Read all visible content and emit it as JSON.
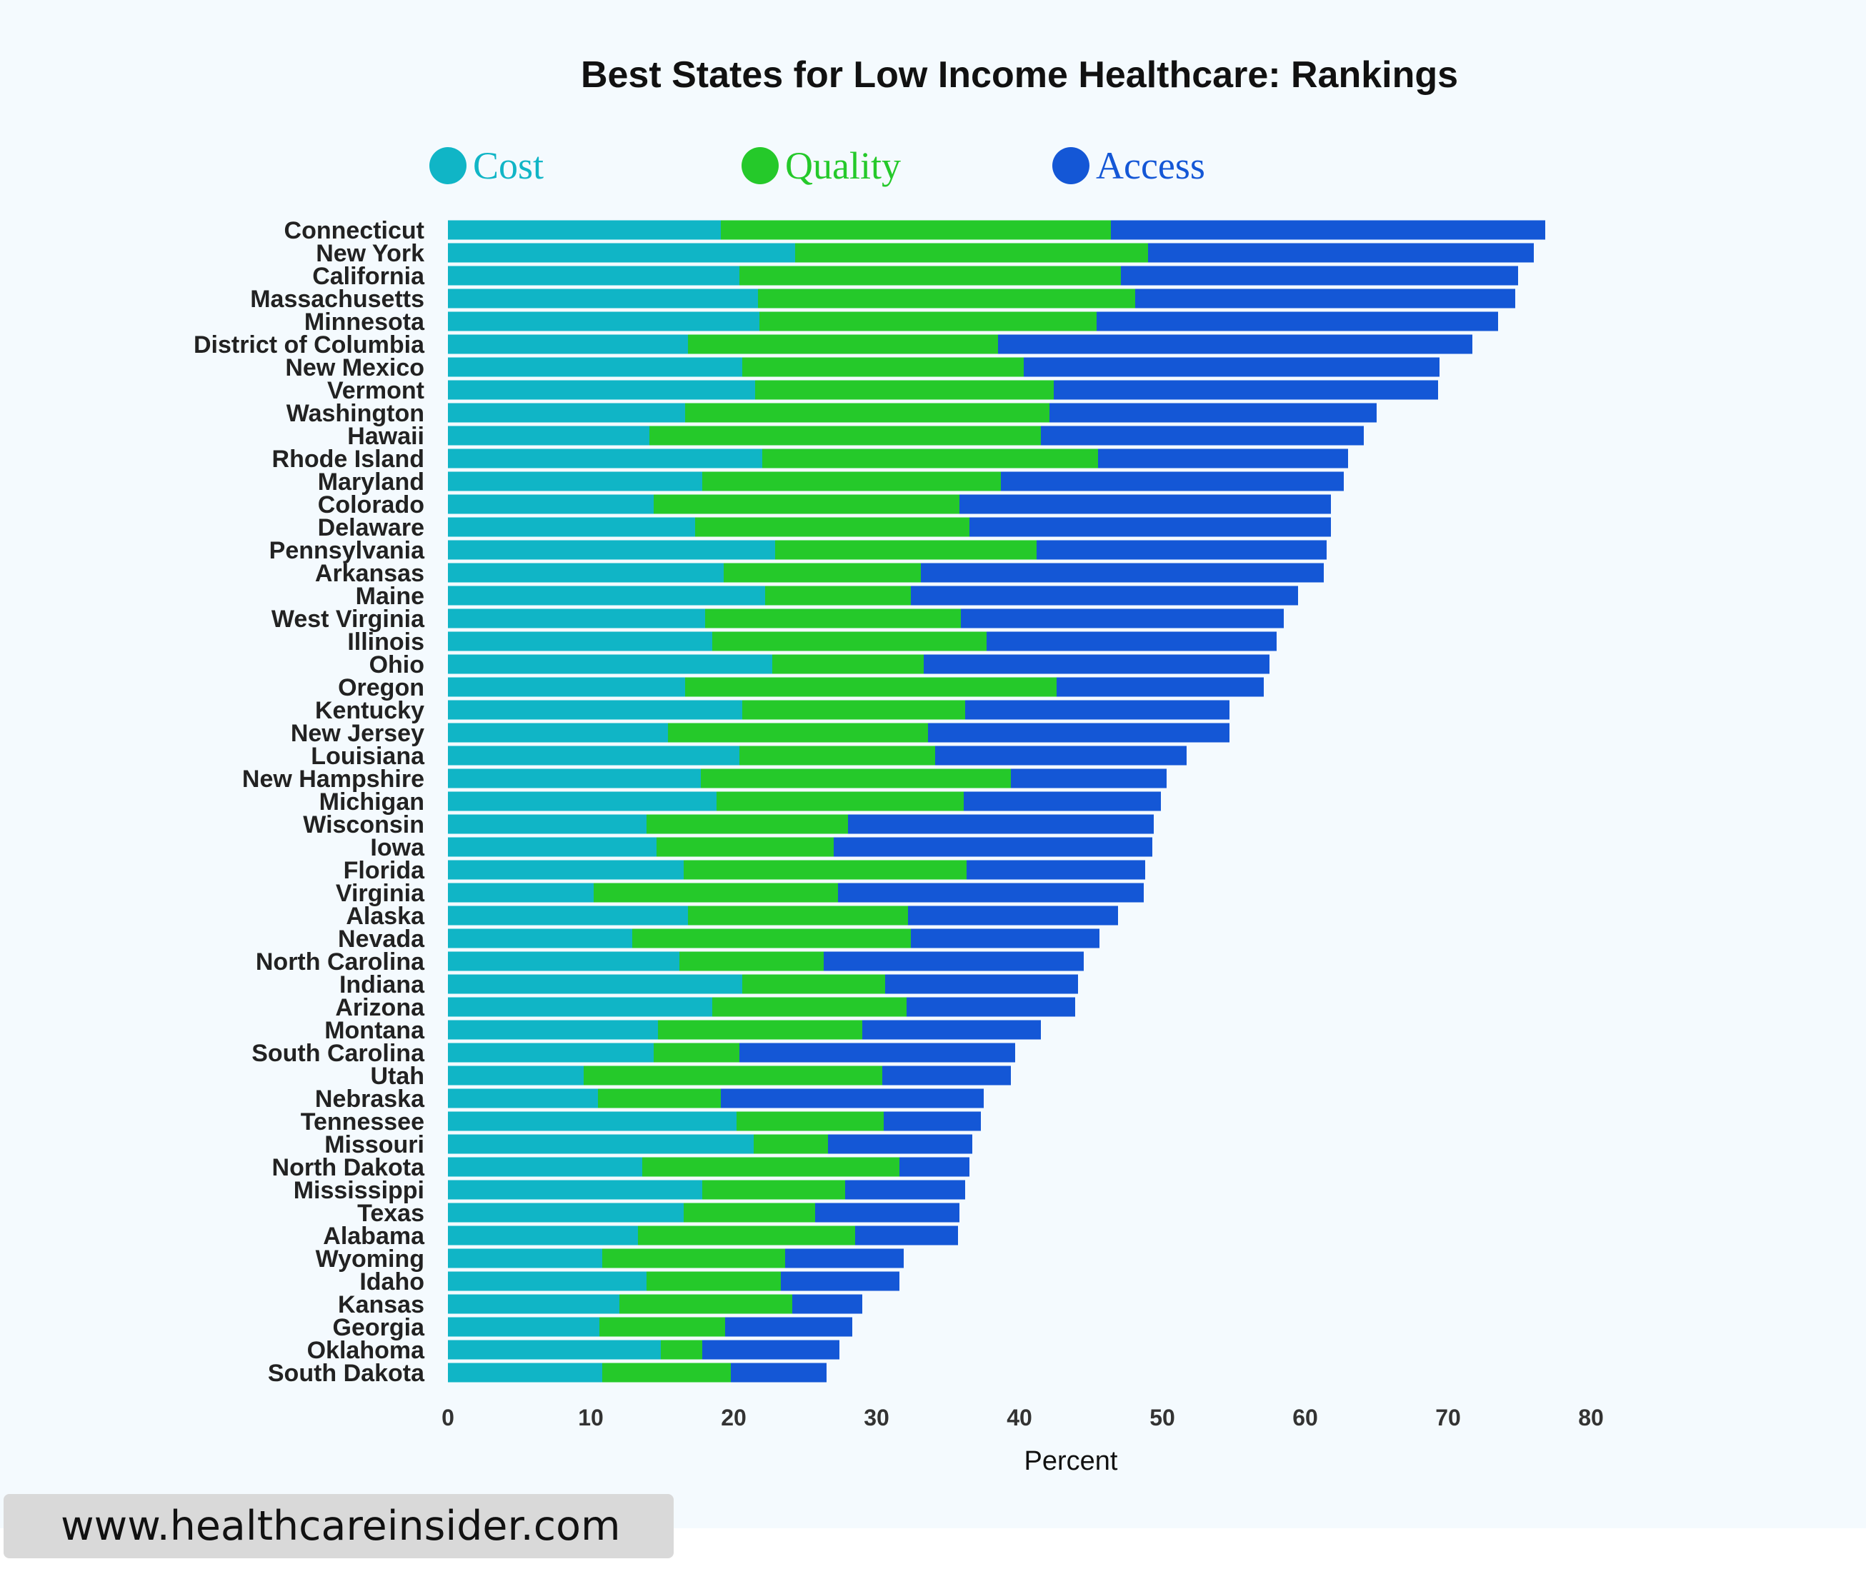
{
  "colors": {
    "cost": "#10b5c6",
    "quality": "#25c92a",
    "access": "#1457d6",
    "background": "#f4fafe",
    "text": "#222222"
  },
  "chart_data": {
    "type": "bar",
    "orientation": "horizontal",
    "stacked": true,
    "title": "Best States for Low Income Healthcare: Rankings",
    "xlabel": "Percent",
    "ylabel": "",
    "xlim": [
      0,
      80
    ],
    "xticks": [
      "0",
      "10",
      "20",
      "30",
      "40",
      "50",
      "60",
      "70",
      "80"
    ],
    "legend_position": "top",
    "categories": [
      "Connecticut",
      "New York",
      "California",
      "Massachusetts",
      "Minnesota",
      "District of Columbia",
      "New Mexico",
      "Vermont",
      "Washington",
      "Hawaii",
      "Rhode Island",
      "Maryland",
      "Colorado",
      "Delaware",
      "Pennsylvania",
      "Arkansas",
      "Maine",
      "West Virginia",
      "Illinois",
      "Ohio",
      "Oregon",
      "Kentucky",
      "New Jersey",
      "Louisiana",
      "New Hampshire",
      "Michigan",
      "Wisconsin",
      "Iowa",
      "Florida",
      "Virginia",
      "Alaska",
      "Nevada",
      "North Carolina",
      "Indiana",
      "Arizona",
      "Montana",
      "South Carolina",
      "Utah",
      "Nebraska",
      "Tennessee",
      "Missouri",
      "North Dakota",
      "Mississippi",
      "Texas",
      "Alabama",
      "Wyoming",
      "Idaho",
      "Kansas",
      "Georgia",
      "Oklahoma",
      "South Dakota"
    ],
    "series": [
      {
        "name": "Cost",
        "values": [
          19.1,
          24.3,
          20.4,
          21.7,
          21.8,
          16.8,
          20.6,
          21.5,
          16.6,
          14.1,
          22.0,
          17.8,
          14.4,
          17.3,
          22.9,
          19.3,
          22.2,
          18.0,
          18.5,
          22.7,
          16.6,
          20.6,
          15.4,
          20.4,
          17.7,
          18.8,
          13.9,
          14.6,
          16.5,
          10.2,
          16.8,
          12.9,
          16.2,
          20.6,
          18.5,
          14.7,
          14.4,
          9.5,
          10.5,
          20.2,
          21.4,
          13.6,
          17.8,
          16.5,
          13.3,
          10.8,
          13.9,
          12.0,
          10.6,
          14.9,
          10.8
        ]
      },
      {
        "name": "Quality",
        "values": [
          27.3,
          24.7,
          26.7,
          26.4,
          23.6,
          21.7,
          19.7,
          20.9,
          25.5,
          27.4,
          23.5,
          20.9,
          21.4,
          19.2,
          18.3,
          13.8,
          10.2,
          17.9,
          19.2,
          10.6,
          26.0,
          15.6,
          18.2,
          13.7,
          21.7,
          17.3,
          14.1,
          12.4,
          19.8,
          17.1,
          15.4,
          19.5,
          10.1,
          10.0,
          13.6,
          14.3,
          6.0,
          20.9,
          8.6,
          10.3,
          5.2,
          18.0,
          10.0,
          9.2,
          15.2,
          12.8,
          9.4,
          12.1,
          8.8,
          2.9,
          9.0
        ]
      },
      {
        "name": "Access",
        "values": [
          30.4,
          27.0,
          27.8,
          26.6,
          28.1,
          33.2,
          29.1,
          26.9,
          22.9,
          22.6,
          17.5,
          24.0,
          26.0,
          25.3,
          20.3,
          28.2,
          27.1,
          22.6,
          20.3,
          24.2,
          14.5,
          18.5,
          21.1,
          17.6,
          10.9,
          13.8,
          21.4,
          22.3,
          12.5,
          21.4,
          14.7,
          13.2,
          18.2,
          13.5,
          11.8,
          12.5,
          19.3,
          9.0,
          18.4,
          6.8,
          10.1,
          4.9,
          8.4,
          10.1,
          7.2,
          8.3,
          8.3,
          4.9,
          8.9,
          9.6,
          6.7
        ]
      }
    ]
  },
  "footer": {
    "url_text": "www.healthcareinsider.com"
  }
}
